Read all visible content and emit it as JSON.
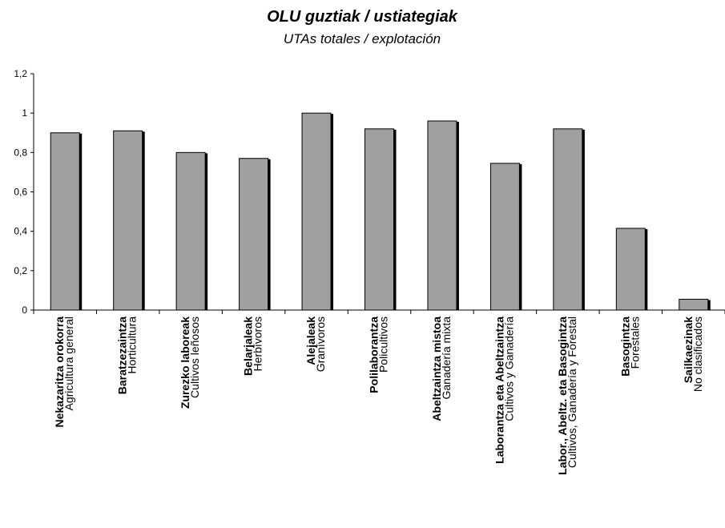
{
  "chart_data": {
    "type": "bar",
    "title": "OLU guztiak / ustiategiak",
    "subtitle": "UTAs totales / explotación",
    "xlabel": "",
    "ylabel": "",
    "ylim": [
      0,
      1.2
    ],
    "yticks": [
      "0",
      "0,2",
      "0,4",
      "0,6",
      "0,8",
      "1",
      "1,2"
    ],
    "grid": false,
    "legend": "none",
    "bar_color": "#a0a0a0",
    "categories": [
      {
        "eu": "Nekazaritza orokorra",
        "es": "Agricultura general"
      },
      {
        "eu": "Baratzezaintza",
        "es": "Horticultura"
      },
      {
        "eu": "Zurezko laboreak",
        "es": "Cultivos leñosos"
      },
      {
        "eu": "Belarjaleak",
        "es": "Herbívoros"
      },
      {
        "eu": "Alejaleak",
        "es": "Granívoros"
      },
      {
        "eu": "Polilaborantza",
        "es": "Policultivos"
      },
      {
        "eu": "Abeltzaintza mistoa",
        "es": "Ganadería mixta"
      },
      {
        "eu": "Laborantza eta Abeltzaintza",
        "es": "Cultivos y Ganadería"
      },
      {
        "eu": "Labor., Abeltz. eta Basogintza",
        "es": "Cultivos, Ganadería y Forestal"
      },
      {
        "eu": "Basogintza",
        "es": "Forestales"
      },
      {
        "eu": "Sailkaezinak",
        "es": "No clasificados"
      }
    ],
    "values": [
      0.9,
      0.91,
      0.8,
      0.77,
      1.0,
      0.92,
      0.96,
      0.745,
      0.92,
      0.415,
      0.055
    ]
  }
}
